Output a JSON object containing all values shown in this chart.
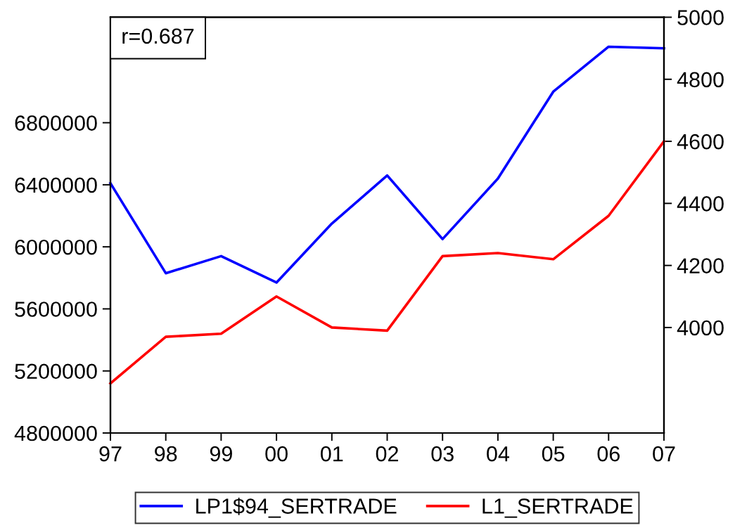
{
  "chart_data": {
    "type": "line",
    "categories": [
      "97",
      "98",
      "99",
      "00",
      "01",
      "02",
      "03",
      "04",
      "05",
      "06",
      "07"
    ],
    "series": [
      {
        "name": "LP1$94_SERTRADE",
        "color": "#0000ff",
        "values": [
          6410000,
          5830000,
          5940000,
          5770000,
          6150000,
          6460000,
          6050000,
          6440000,
          7000000,
          7290000,
          7280000
        ]
      },
      {
        "name": "L1_SERTRADE",
        "color": "#ff0000",
        "axis": "y2",
        "values": [
          3820,
          3970,
          3980,
          4100,
          4000,
          3990,
          4230,
          4240,
          4220,
          4360,
          4600
        ]
      }
    ],
    "ylim": [
      4800000,
      7480000
    ],
    "yticks": [
      4800000,
      5200000,
      5600000,
      6000000,
      6400000,
      6800000
    ],
    "y2lim": [
      3660,
      5000
    ],
    "y2ticks": [
      4000,
      4200,
      4400,
      4600,
      4800,
      5000
    ],
    "annotations": [
      "r=0.687"
    ],
    "legend": "bottom",
    "grid": false,
    "marker": "none",
    "line_style": "solid"
  }
}
